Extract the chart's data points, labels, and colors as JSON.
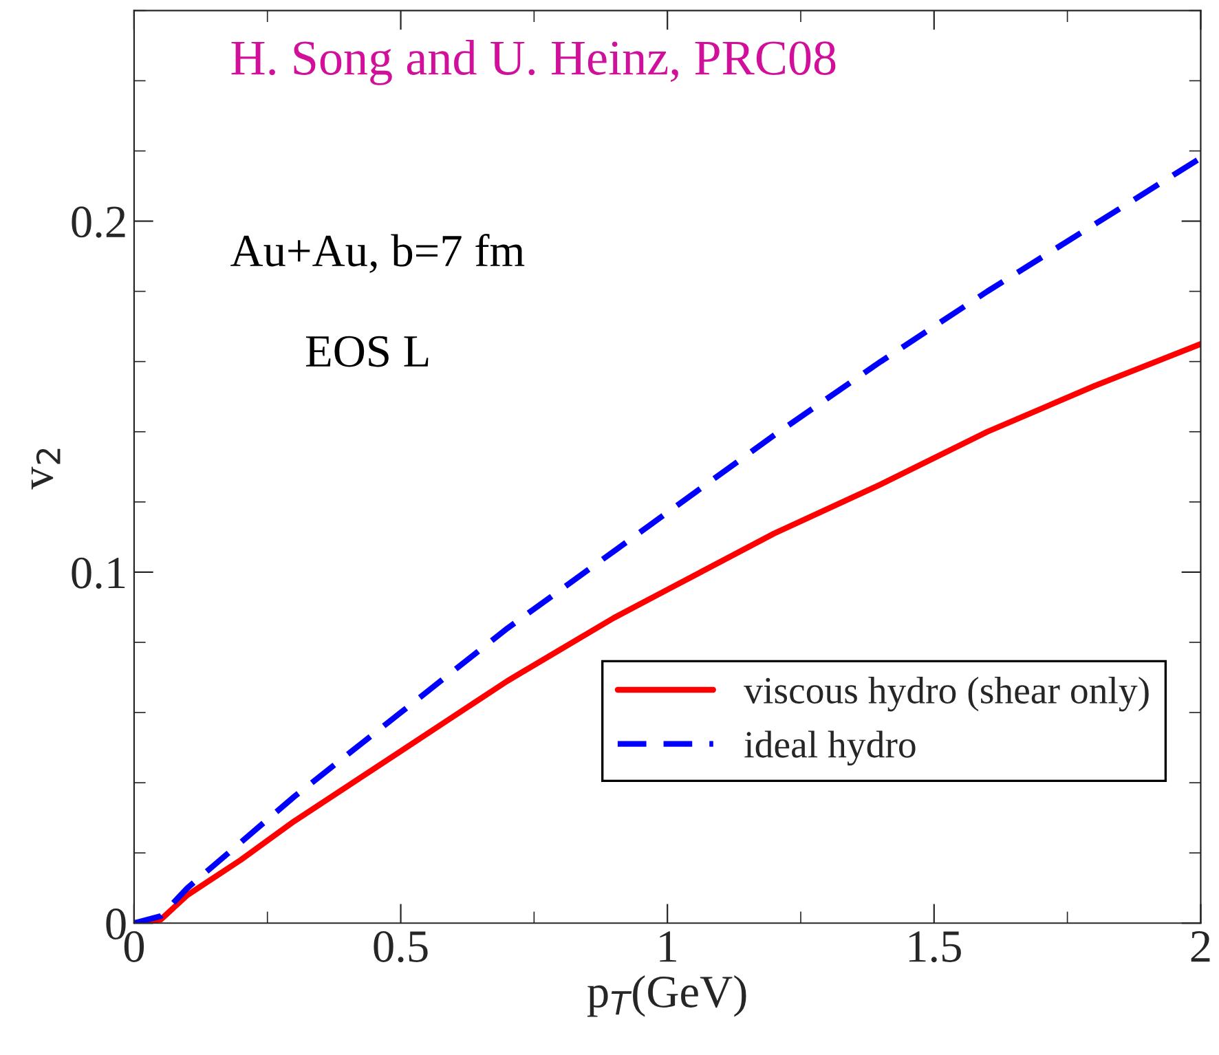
{
  "chart_data": {
    "type": "line",
    "xlabel": "p$_{T}$(GeV)",
    "ylabel": "v$_{2}$",
    "annotations": [
      "H. Song and U. Heinz, PRC08",
      "Au+Au, b=7 fm",
      "EOS L"
    ],
    "x": [
      0,
      0.05,
      0.1,
      0.2,
      0.3,
      0.4,
      0.5,
      0.6,
      0.7,
      0.8,
      0.9,
      1.0,
      1.2,
      1.4,
      1.6,
      1.8,
      2.0
    ],
    "series": [
      {
        "name": "viscous hydro (shear only)",
        "color": "#ff0000",
        "line_style": "solid",
        "values": [
          0,
          0.001,
          0.008,
          0.018,
          0.029,
          0.039,
          0.049,
          0.059,
          0.069,
          0.078,
          0.087,
          0.095,
          0.111,
          0.125,
          0.14,
          0.153,
          0.165
        ]
      },
      {
        "name": "ideal hydro",
        "color": "#0000ff",
        "line_style": "dashed",
        "values": [
          0,
          0.002,
          0.01,
          0.023,
          0.036,
          0.048,
          0.06,
          0.072,
          0.084,
          0.095,
          0.106,
          0.117,
          0.139,
          0.16,
          0.18,
          0.199,
          0.218
        ]
      }
    ],
    "xlim": [
      0,
      2
    ],
    "xticks": [
      0,
      0.5,
      1,
      1.5,
      2
    ],
    "ylim": [
      0,
      0.26
    ],
    "yticks": [
      0,
      0.1,
      0.2
    ],
    "legend": "bottom right",
    "grid": false,
    "marker": "none"
  }
}
